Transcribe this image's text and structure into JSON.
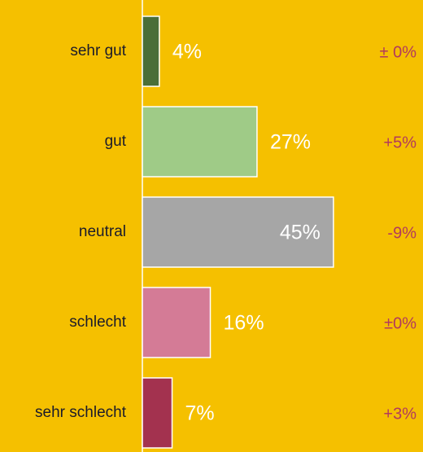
{
  "chart_data": {
    "type": "bar",
    "orientation": "horizontal",
    "categories": [
      "sehr gut",
      "gut",
      "neutral",
      "schlecht",
      "sehr schlecht"
    ],
    "values": [
      4,
      27,
      45,
      16,
      7
    ],
    "value_labels": [
      "4%",
      "27%",
      "45%",
      "16%",
      "7%"
    ],
    "colors": [
      "#4a6e38",
      "#9fcb87",
      "#a6a6a6",
      "#d47b96",
      "#a3324f"
    ],
    "annotations": [
      "± 0%",
      "+5%",
      "-9%",
      "±0%",
      "+3%"
    ],
    "xlim": [
      0,
      100
    ]
  }
}
